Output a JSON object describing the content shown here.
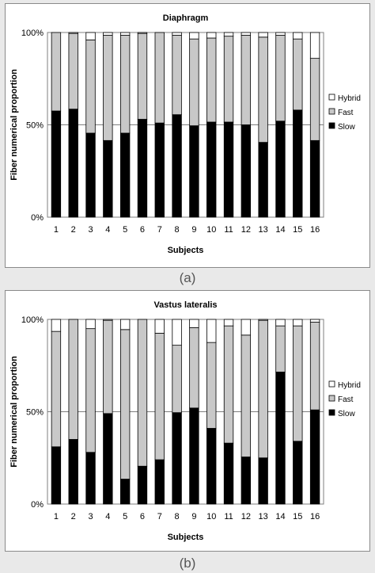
{
  "colors": {
    "slow": "#000000",
    "fast": "#c8c8c8",
    "hybrid": "#ffffff"
  },
  "chart_data": [
    {
      "type": "bar",
      "stacked": true,
      "title": "Diaphragm",
      "xlabel": "Subjects",
      "ylabel": "Fiber numerical proportion",
      "ylim": [
        0,
        100
      ],
      "y_ticks": [
        "0%",
        "50%",
        "100%"
      ],
      "grid": true,
      "legend_position": "right",
      "categories": [
        "1",
        "2",
        "3",
        "4",
        "5",
        "6",
        "7",
        "8",
        "9",
        "10",
        "11",
        "12",
        "13",
        "14",
        "15",
        "16"
      ],
      "series": [
        {
          "name": "Slow",
          "values": [
            57.5,
            58.5,
            45.5,
            41.5,
            45.5,
            53,
            51,
            55.5,
            49.5,
            51.5,
            51.5,
            50,
            40.5,
            52,
            58,
            41.5
          ]
        },
        {
          "name": "Fast",
          "values": [
            42.5,
            41,
            50.5,
            57,
            53,
            46.5,
            49,
            43,
            47,
            45.5,
            46.5,
            48.5,
            57,
            46.5,
            38.5,
            44.5
          ]
        },
        {
          "name": "Hybrid",
          "values": [
            0,
            0.5,
            4,
            1.5,
            1.5,
            0.5,
            0,
            1.5,
            3.5,
            3,
            2,
            1.5,
            2.5,
            1.5,
            3.5,
            14
          ]
        }
      ],
      "caption": "(a)"
    },
    {
      "type": "bar",
      "stacked": true,
      "title": "Vastus lateralis",
      "xlabel": "Subjects",
      "ylabel": "Fiber numerical proportion",
      "ylim": [
        0,
        100
      ],
      "y_ticks": [
        "0%",
        "50%",
        "100%"
      ],
      "grid": true,
      "legend_position": "right",
      "categories": [
        "1",
        "2",
        "3",
        "4",
        "5",
        "6",
        "7",
        "8",
        "9",
        "10",
        "11",
        "12",
        "13",
        "14",
        "15",
        "16"
      ],
      "series": [
        {
          "name": "Slow",
          "values": [
            31,
            35,
            28,
            49,
            13.5,
            20.5,
            24,
            49.5,
            52,
            41,
            33,
            25.5,
            25,
            71.5,
            34,
            51
          ]
        },
        {
          "name": "Fast",
          "values": [
            62.5,
            65,
            67,
            50.5,
            81,
            79.5,
            68.5,
            36.5,
            43.5,
            46.5,
            63.5,
            66,
            74.5,
            25,
            62.5,
            47.5
          ]
        },
        {
          "name": "Hybrid",
          "values": [
            6.5,
            0,
            5,
            0.5,
            5.5,
            0,
            7.5,
            14,
            4.5,
            12.5,
            3.5,
            8.5,
            0.5,
            3.5,
            3.5,
            1.5
          ]
        }
      ],
      "caption": "(b)"
    }
  ]
}
